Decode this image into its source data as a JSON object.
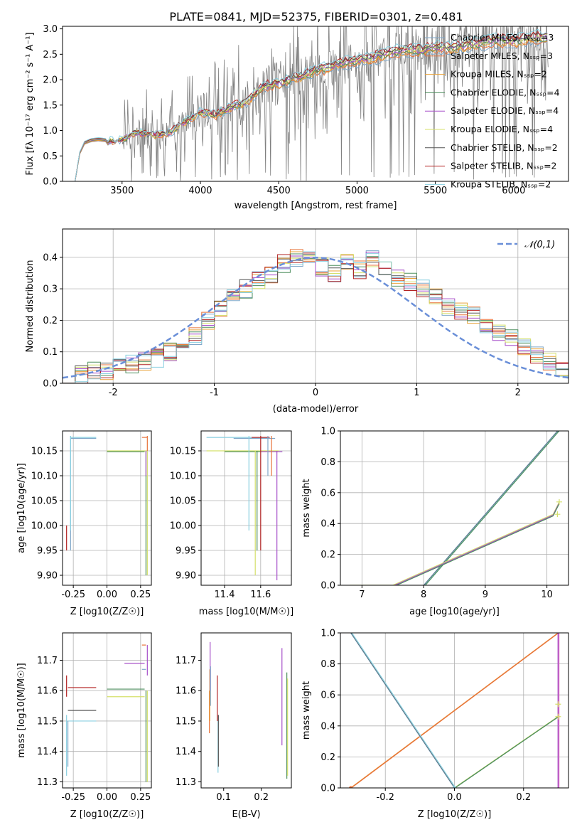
{
  "figure_title": "PLATE=0841, MJD=52375, FIBERID=0301, z=0.481",
  "colors": {
    "Chabrier MILES": "#7fa7c9",
    "Salpeter MILES": "#e8733a",
    "Kroupa MILES": "#e8a33a",
    "Chabrier ELODIE": "#4f8f5f",
    "Salpeter ELODIE": "#a64fc9",
    "Kroupa ELODIE": "#d4e06a",
    "Chabrier STELIB": "#555555",
    "Salpeter STELIB": "#b22222",
    "Kroupa STELIB": "#89cfe0",
    "normal": "#6a8fd8",
    "data": "#808080"
  },
  "chart_data": [
    {
      "type": "line",
      "title": "PLATE=0841, MJD=52375, FIBERID=0301, z=0.481",
      "xlabel": "wavelength [Angstrom, rest frame]",
      "ylabel": "Flux [fλ 10⁻¹⁷ erg cm⁻² s⁻¹ A⁻¹]",
      "xlim": [
        3120,
        6350
      ],
      "ylim": [
        0,
        3.05
      ],
      "xticks": [
        3500,
        4000,
        4500,
        5000,
        5500,
        6000
      ],
      "yticks": [
        0.0,
        0.5,
        1.0,
        1.5,
        2.0,
        2.5,
        3.0
      ],
      "grid": false,
      "legend_position": "right",
      "legend": [
        "Chabrier MILES, N_SSP=3",
        "Salpeter MILES, N_SSP=3",
        "Kroupa MILES, N_SSP=2",
        "Chabrier ELODIE, N_SSP=4",
        "Salpeter ELODIE, N_SSP=4",
        "Kroupa ELODIE, N_SSP=4",
        "Chabrier STELIB, N_SSP=2",
        "Salpeter STELIB, N_SSP=2",
        "Kroupa STELIB, N_SSP=2"
      ],
      "continuum_x": [
        3200,
        3230,
        3260,
        3300,
        3350,
        3400,
        3450,
        3500,
        3600,
        3700,
        3800,
        3900,
        4000,
        4100,
        4200,
        4300,
        4400,
        4500,
        4600,
        4700,
        4800,
        4900,
        5000,
        5100,
        5200,
        5300,
        5400,
        5500,
        5600,
        5700,
        5800,
        5900,
        6000,
        6100,
        6200
      ],
      "continuum_y": [
        0.0,
        0.55,
        0.75,
        0.8,
        0.82,
        0.8,
        0.78,
        0.82,
        0.95,
        0.9,
        0.95,
        1.15,
        1.35,
        1.3,
        1.45,
        1.55,
        1.85,
        1.9,
        2.0,
        2.1,
        2.2,
        2.3,
        2.35,
        2.4,
        2.5,
        2.55,
        2.55,
        2.6,
        2.6,
        2.65,
        2.7,
        2.75,
        2.72,
        2.78,
        2.8
      ]
    },
    {
      "type": "histogram",
      "xlabel": "(data-model)/error",
      "ylabel": "Normed distribution",
      "xlim": [
        -2.5,
        2.5
      ],
      "ylim": [
        0,
        0.49
      ],
      "xticks": [
        -2,
        -1,
        0,
        1,
        2
      ],
      "yticks": [
        0.0,
        0.1,
        0.2,
        0.3,
        0.4
      ],
      "grid": true,
      "legend_position": "top-right",
      "legend": [
        "N(0,1)"
      ],
      "bin_edges": [
        -2.5,
        -2.375,
        -2.25,
        -2.125,
        -2.0,
        -1.875,
        -1.75,
        -1.625,
        -1.5,
        -1.375,
        -1.25,
        -1.125,
        -1.0,
        -0.875,
        -0.75,
        -0.625,
        -0.5,
        -0.375,
        -0.25,
        -0.125,
        0.0,
        0.125,
        0.25,
        0.375,
        0.5,
        0.625,
        0.75,
        0.875,
        1.0,
        1.125,
        1.25,
        1.375,
        1.5,
        1.625,
        1.75,
        1.875,
        2.0,
        2.125,
        2.25,
        2.375,
        2.5
      ],
      "base_density": [
        0.03,
        0.03,
        0.04,
        0.04,
        0.05,
        0.06,
        0.07,
        0.08,
        0.1,
        0.13,
        0.15,
        0.2,
        0.24,
        0.27,
        0.3,
        0.33,
        0.34,
        0.38,
        0.4,
        0.41,
        0.37,
        0.35,
        0.38,
        0.36,
        0.4,
        0.37,
        0.33,
        0.32,
        0.3,
        0.28,
        0.24,
        0.23,
        0.22,
        0.19,
        0.16,
        0.14,
        0.12,
        0.09,
        0.07,
        0.04
      ]
    },
    {
      "type": "scatter",
      "xlabel": "Z [log10(Z/Z☉)]",
      "ylabel": "age [log10(age/yr)]",
      "xlim": [
        -0.33,
        0.33
      ],
      "ylim": [
        9.88,
        10.19
      ],
      "xticks": [
        -0.25,
        0.0,
        0.25
      ],
      "yticks": [
        9.9,
        9.95,
        10.0,
        10.05,
        10.1,
        10.15
      ],
      "grid": true
    },
    {
      "type": "scatter",
      "xlabel": "mass [log10(M/M☉)]",
      "ylabel": "",
      "xlim": [
        11.27,
        11.77
      ],
      "ylim": [
        9.88,
        10.19
      ],
      "xticks": [
        11.4,
        11.6
      ],
      "yticks": [
        9.9,
        9.95,
        10.0,
        10.05,
        10.1,
        10.15
      ],
      "grid": true
    },
    {
      "type": "line",
      "xlabel": "age [log10(age/yr)]",
      "ylabel": "mass weight",
      "xlim": [
        6.65,
        10.35
      ],
      "ylim": [
        0,
        1.0
      ],
      "xticks": [
        7,
        8,
        9,
        10
      ],
      "yticks": [
        0.0,
        0.2,
        0.4,
        0.6,
        0.8,
        1.0
      ],
      "grid": true,
      "series": [
        {
          "x": [
            8.0,
            10.17
          ],
          "y": [
            0.0,
            1.0
          ]
        },
        {
          "x": [
            6.8,
            7.5,
            10.1,
            10.2
          ],
          "y": [
            0.0,
            0.0,
            0.46,
            0.54
          ]
        }
      ]
    },
    {
      "type": "scatter",
      "xlabel": "Z [log10(Z/Z☉)]",
      "ylabel": "mass [log10(M/M☉)]",
      "xlim": [
        -0.33,
        0.33
      ],
      "ylim": [
        11.28,
        11.79
      ],
      "xticks": [
        -0.25,
        0.0,
        0.25
      ],
      "yticks": [
        11.3,
        11.4,
        11.5,
        11.6,
        11.7
      ],
      "grid": true
    },
    {
      "type": "scatter",
      "xlabel": "E(B-V)",
      "ylabel": "",
      "xlim": [
        0.04,
        0.28
      ],
      "ylim": [
        11.28,
        11.79
      ],
      "xticks": [
        0.1,
        0.2
      ],
      "yticks": [
        11.3,
        11.4,
        11.5,
        11.6,
        11.7
      ],
      "grid": false
    },
    {
      "type": "line",
      "xlabel": "Z [log10(Z/Z☉)]",
      "ylabel": "mass weight",
      "xlim": [
        -0.33,
        0.33
      ],
      "ylim": [
        0,
        1.0
      ],
      "xticks": [
        -0.2,
        0.0,
        0.2
      ],
      "yticks": [
        0.0,
        0.2,
        0.4,
        0.6,
        0.8,
        1.0
      ],
      "grid": true,
      "series": [
        {
          "x": [
            -0.3,
            0.3
          ],
          "y": [
            0.0,
            1.0
          ]
        },
        {
          "x": [
            -0.3,
            0.0
          ],
          "y": [
            1.0,
            0.0
          ]
        },
        {
          "x": [
            0.0,
            0.3,
            0.3
          ],
          "y": [
            0.0,
            0.46,
            0.54
          ]
        }
      ]
    }
  ]
}
